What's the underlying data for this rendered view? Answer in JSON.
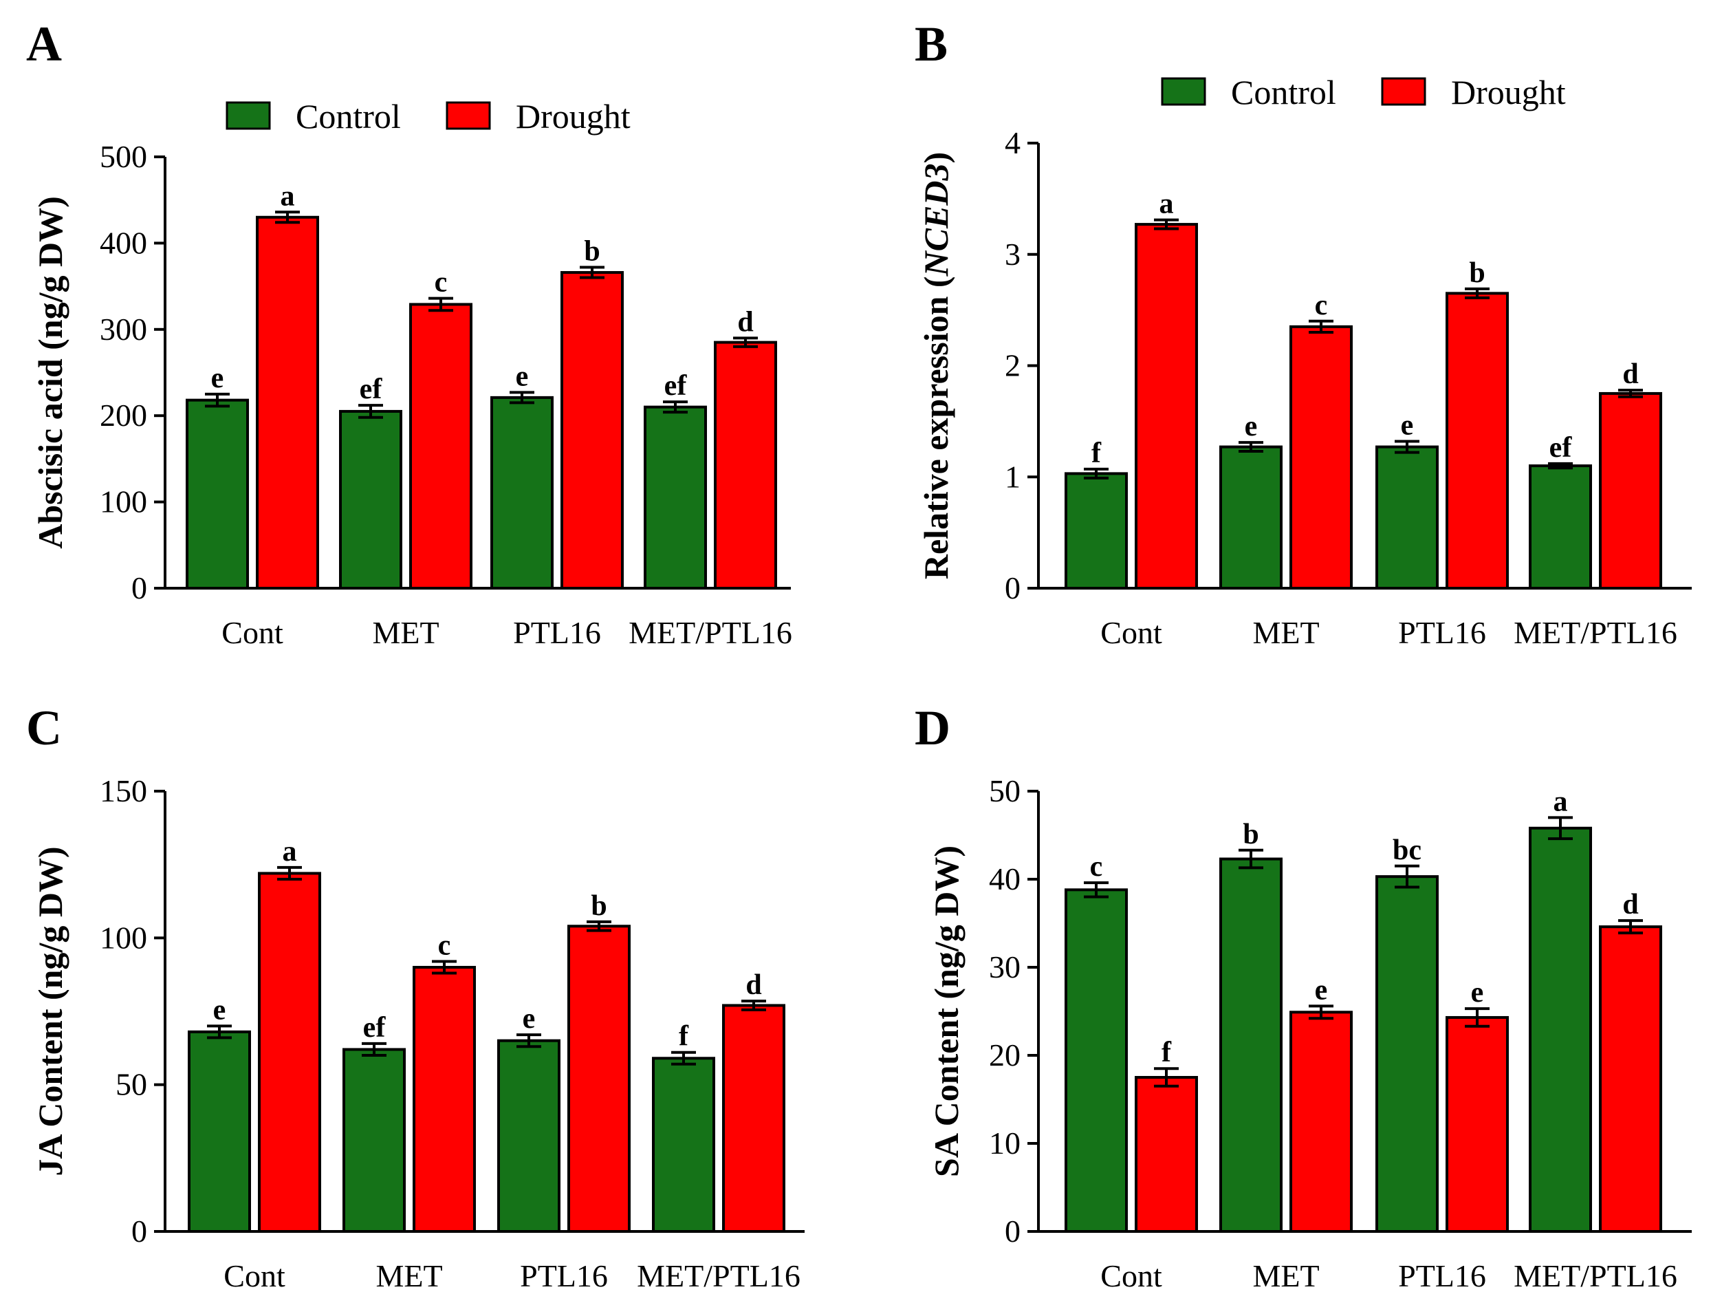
{
  "legend": {
    "control_label": "Control",
    "drought_label": "Drought"
  },
  "colors": {
    "control": "#157318",
    "drought": "#ff0000"
  },
  "chart_data": [
    {
      "panel": "A",
      "type": "bar",
      "categories": [
        "Cont",
        "MET",
        "PTL16",
        "MET/PTL16"
      ],
      "ylabel": "Abscisic acid (ng/g DW)",
      "ylim": [
        0,
        500
      ],
      "yticks": [
        0,
        100,
        200,
        300,
        400,
        500
      ],
      "series": [
        {
          "name": "Control",
          "values": [
            218,
            205,
            221,
            210
          ],
          "errors": [
            7,
            7,
            6,
            6
          ],
          "labels": [
            "e",
            "ef",
            "e",
            "ef"
          ]
        },
        {
          "name": "Drought",
          "values": [
            430,
            329,
            366,
            285
          ],
          "errors": [
            6,
            7,
            6,
            5
          ],
          "labels": [
            "a",
            "c",
            "b",
            "d"
          ]
        }
      ]
    },
    {
      "panel": "B",
      "type": "bar",
      "categories": [
        "Cont",
        "MET",
        "PTL16",
        "MET/PTL16"
      ],
      "ylabel_prefix": "Relative expression (",
      "ylabel_gene": "NCED3",
      "ylabel_suffix": ")",
      "ylim": [
        0,
        4
      ],
      "yticks": [
        0,
        1,
        2,
        3,
        4
      ],
      "series": [
        {
          "name": "Control",
          "values": [
            1.03,
            1.27,
            1.27,
            1.1
          ],
          "errors": [
            0.04,
            0.04,
            0.05,
            0.02
          ],
          "labels": [
            "f",
            "e",
            "e",
            "ef"
          ]
        },
        {
          "name": "Drought",
          "values": [
            3.27,
            2.35,
            2.65,
            1.75
          ],
          "errors": [
            0.04,
            0.05,
            0.04,
            0.03
          ],
          "labels": [
            "a",
            "c",
            "b",
            "d"
          ]
        }
      ]
    },
    {
      "panel": "C",
      "type": "bar",
      "categories": [
        "Cont",
        "MET",
        "PTL16",
        "MET/PTL16"
      ],
      "ylabel": "JA Content (ng/g DW)",
      "ylim": [
        0,
        150
      ],
      "yticks": [
        0,
        50,
        100,
        150
      ],
      "series": [
        {
          "name": "Control",
          "values": [
            68,
            62,
            65,
            59
          ],
          "errors": [
            2,
            2,
            2,
            2
          ],
          "labels": [
            "e",
            "ef",
            "e",
            "f"
          ]
        },
        {
          "name": "Drought",
          "values": [
            122,
            90,
            104,
            77
          ],
          "errors": [
            2,
            2,
            1.5,
            1.5
          ],
          "labels": [
            "a",
            "c",
            "b",
            "d"
          ]
        }
      ]
    },
    {
      "panel": "D",
      "type": "bar",
      "categories": [
        "Cont",
        "MET",
        "PTL16",
        "MET/PTL16"
      ],
      "ylabel": "SA Content (ng/g DW)",
      "ylim": [
        0,
        50
      ],
      "yticks": [
        0,
        10,
        20,
        30,
        40,
        50
      ],
      "series": [
        {
          "name": "Control",
          "values": [
            38.8,
            42.3,
            40.3,
            45.8
          ],
          "errors": [
            0.8,
            1.0,
            1.2,
            1.2
          ],
          "labels": [
            "c",
            "b",
            "bc",
            "a"
          ]
        },
        {
          "name": "Drought",
          "values": [
            17.5,
            24.9,
            24.3,
            34.6
          ],
          "errors": [
            1.0,
            0.7,
            1.0,
            0.7
          ],
          "labels": [
            "f",
            "e",
            "e",
            "d"
          ]
        }
      ]
    }
  ]
}
